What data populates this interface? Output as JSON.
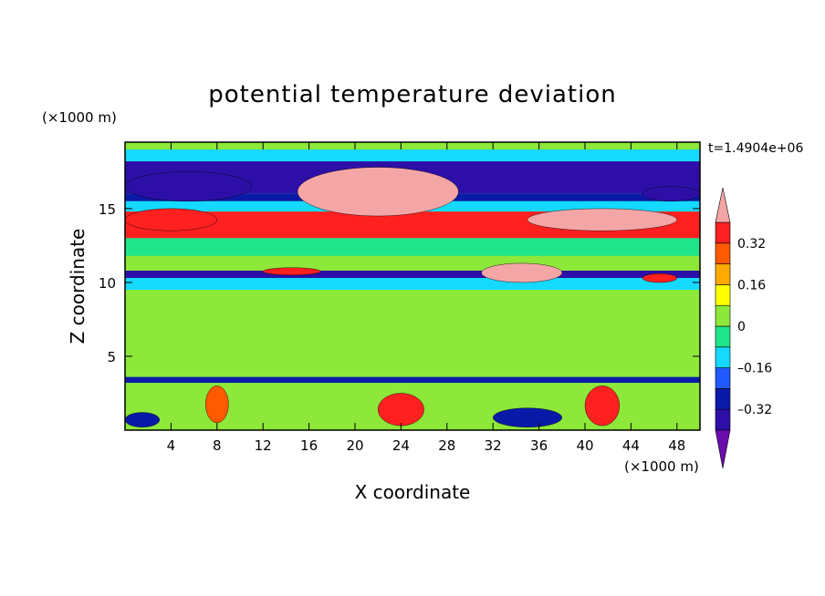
{
  "chart_data": {
    "type": "heatmap",
    "title": "potential temperature deviation",
    "xlabel": "X coordinate",
    "ylabel": "Z coordinate",
    "x_unit_label": "(×1000 m)",
    "y_unit_label": "(×1000 m)",
    "time_label": "t=1.4904e+06",
    "xlim": [
      0,
      50
    ],
    "ylim": [
      0,
      19.5
    ],
    "x_ticks": [
      4,
      8,
      12,
      16,
      20,
      24,
      28,
      32,
      36,
      40,
      44,
      48
    ],
    "y_ticks": [
      5,
      10,
      15
    ],
    "grid": false,
    "colorbar": {
      "placement": "right",
      "levels": [
        -0.4,
        -0.32,
        -0.24,
        -0.16,
        -0.08,
        0,
        0.08,
        0.16,
        0.24,
        0.32,
        0.4
      ],
      "colors": [
        "#6a0dad",
        "#2d0fa8",
        "#0a1aa8",
        "#1e5aff",
        "#15d9ff",
        "#21e58a",
        "#8de83a",
        "#ffff00",
        "#ffaa00",
        "#ff5a00",
        "#ff2020",
        "#f4a6a6"
      ],
      "tick_labels": [
        "0.32",
        "0.16",
        "0",
        "–0.16",
        "–0.32"
      ],
      "tick_values": [
        0.32,
        0.16,
        0,
        -0.16,
        -0.32
      ]
    },
    "layers": [
      {
        "z_range": [
          19.0,
          19.5
        ],
        "value": 0.0
      },
      {
        "z_range": [
          18.2,
          19.0
        ],
        "value": -0.1
      },
      {
        "z_range": [
          16.0,
          18.2
        ],
        "value": -0.35
      },
      {
        "z_range": [
          15.5,
          16.0
        ],
        "value": -0.28
      },
      {
        "z_range": [
          14.8,
          15.5
        ],
        "value": -0.12
      },
      {
        "z_range": [
          13.0,
          14.8
        ],
        "value": 0.38
      },
      {
        "z_range": [
          11.8,
          13.0
        ],
        "value": -0.05
      },
      {
        "z_range": [
          10.8,
          11.8
        ],
        "value": 0.02
      },
      {
        "z_range": [
          10.3,
          10.8
        ],
        "value": -0.36
      },
      {
        "z_range": [
          9.5,
          10.3
        ],
        "value": -0.1
      },
      {
        "z_range": [
          3.6,
          9.5
        ],
        "value": 0.04
      },
      {
        "z_range": [
          3.2,
          3.6
        ],
        "value": -0.3
      },
      {
        "z_range": [
          0.0,
          3.2
        ],
        "value": 0.0
      }
    ],
    "features": [
      {
        "name": "warm-anomaly-upper-center",
        "x_range": [
          15,
          29
        ],
        "z_range": [
          14.5,
          17.8
        ],
        "value": 0.4
      },
      {
        "name": "cold-anomaly-upper-left",
        "x_range": [
          0,
          11
        ],
        "z_range": [
          15.5,
          17.5
        ],
        "value": -0.36
      },
      {
        "name": "cold-anomaly-upper-right",
        "x_range": [
          45,
          50
        ],
        "z_range": [
          15.5,
          16.5
        ],
        "value": -0.36
      },
      {
        "name": "warm-anomaly-upper-right",
        "x_range": [
          35,
          48
        ],
        "z_range": [
          13.5,
          15.0
        ],
        "value": 0.4
      },
      {
        "name": "warm-anomaly-upper-left",
        "x_range": [
          0,
          8
        ],
        "z_range": [
          13.5,
          15.0
        ],
        "value": 0.38
      },
      {
        "name": "warm-patch-mid-left",
        "x_range": [
          12,
          17
        ],
        "z_range": [
          10.5,
          11.0
        ],
        "value": 0.38
      },
      {
        "name": "warm-patch-mid-center",
        "x_range": [
          31,
          38
        ],
        "z_range": [
          10.0,
          11.3
        ],
        "value": 0.4
      },
      {
        "name": "warm-patch-mid-right",
        "x_range": [
          45,
          48
        ],
        "z_range": [
          10.0,
          10.6
        ],
        "value": 0.38
      },
      {
        "name": "boundary-layer-warm-1",
        "x_range": [
          7,
          9
        ],
        "z_range": [
          0.5,
          3.0
        ],
        "value": 0.3
      },
      {
        "name": "boundary-layer-warm-2",
        "x_range": [
          22,
          26
        ],
        "z_range": [
          0.3,
          2.5
        ],
        "value": 0.32
      },
      {
        "name": "boundary-layer-warm-3",
        "x_range": [
          40,
          43
        ],
        "z_range": [
          0.3,
          3.0
        ],
        "value": 0.36
      },
      {
        "name": "boundary-layer-cold-1",
        "x_range": [
          32,
          38
        ],
        "z_range": [
          0.2,
          1.5
        ],
        "value": -0.32
      },
      {
        "name": "boundary-layer-cold-2",
        "x_range": [
          0,
          3
        ],
        "z_range": [
          0.2,
          1.2
        ],
        "value": -0.3
      }
    ]
  }
}
